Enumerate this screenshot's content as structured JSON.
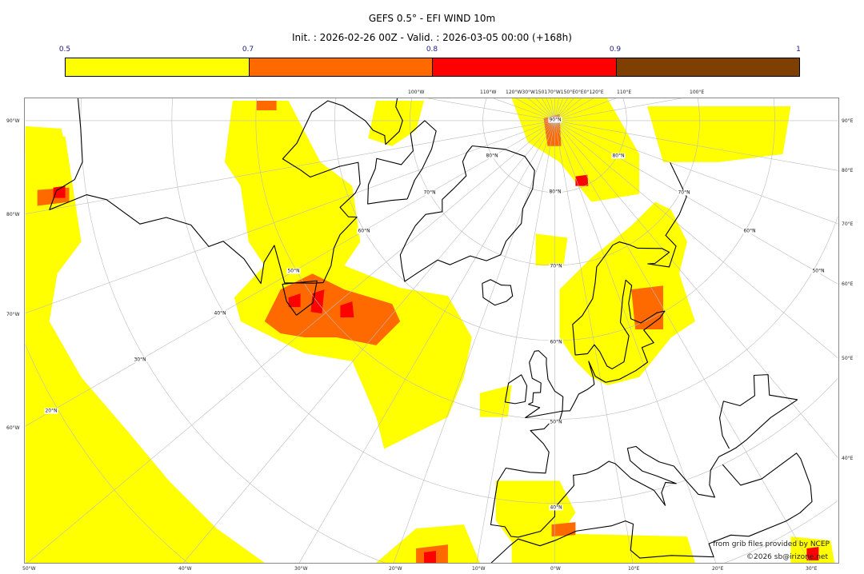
{
  "header": {
    "title": "GEFS 0.5° - EFI WIND 10m",
    "subtitle": "Init. : 2026-02-26 00Z - Valid. : 2026-03-05 00:00 (+168h)"
  },
  "colorbar": {
    "ticks": [
      "0.5",
      "0.7",
      "0.8",
      "0.9",
      "1"
    ],
    "colors": [
      "#ffff00",
      "#ff6a00",
      "#ff0000",
      "#7f3f00"
    ]
  },
  "axes": {
    "bottom": [
      "50°W",
      "40°W",
      "30°W",
      "20°W",
      "10°W",
      "0°W",
      "10°E",
      "20°E",
      "30°E"
    ],
    "left": [
      "90°W",
      "80°W",
      "70°W",
      "60°W"
    ],
    "right": [
      "90°E",
      "80°E",
      "70°E",
      "60°E",
      "50°E",
      "40°E"
    ],
    "top": [
      "100°W",
      "110°W",
      "120°W30°W150170°W150°E0°E0°120°E",
      "110°E",
      "100°E"
    ]
  },
  "latitude_labels": [
    "90°N",
    "80°N",
    "70°N",
    "60°N",
    "50°N",
    "40°N",
    "80°N",
    "70°N",
    "60°N",
    "50°N",
    "40°N",
    "30°N",
    "20°N",
    "80°N",
    "70°N",
    "60°N",
    "50°N"
  ],
  "credits": {
    "line1": "from grib files provided by NCEP",
    "line2": "©2026 sb@irizone.net"
  },
  "map": {
    "projection": "north polar stereographic",
    "land_outline_color": "#000000",
    "graticule_color": "#bbbbbb"
  }
}
